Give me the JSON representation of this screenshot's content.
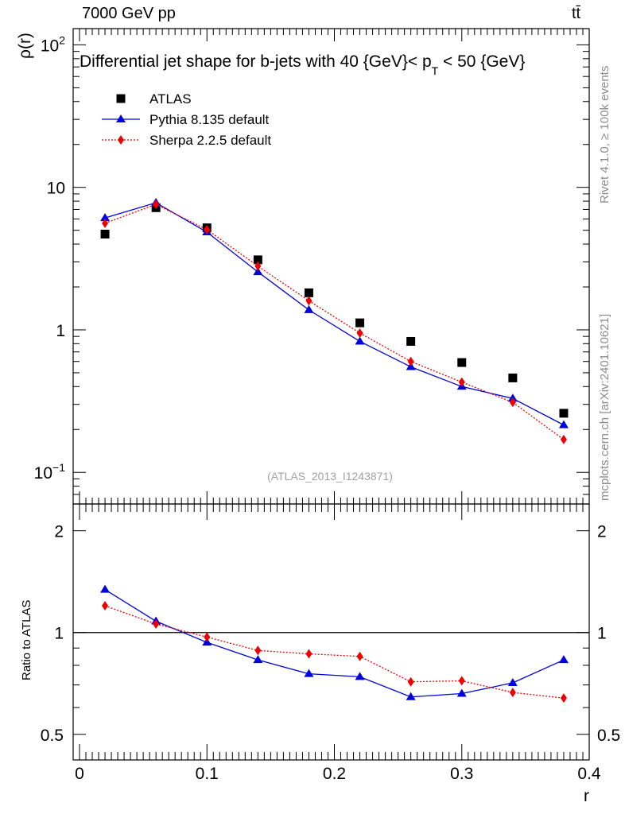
{
  "header": {
    "energy_label": "7000 GeV pp",
    "process_label": "tt̄",
    "rivet_label": "Rivet 4.1.0, ≥ 100k events",
    "mcplots_label": "mcplots.cern.ch [arXiv:2401.10621]"
  },
  "chart_data": [
    {
      "type": "scatter",
      "panel": "main",
      "title": "Differential jet shape for b-jets with 40 {GeV}< p_T < 50 {GeV}",
      "title_parts": {
        "before": "Differential jet shape for b-jets with 40 {GeV}< p",
        "sub": "T",
        "after": " < 50 {GeV}"
      },
      "watermark": "(ATLAS_2013_I1243871)",
      "ylabel": "ρ(r)",
      "xlabel": "",
      "xlim": [
        -0.005,
        0.4
      ],
      "ylim": [
        0.06,
        130
      ],
      "yscale": "log",
      "yticks": [
        {
          "value": 0.1,
          "label": "10",
          "exp": "−1"
        },
        {
          "value": 1,
          "label": "1",
          "exp": ""
        },
        {
          "value": 10,
          "label": "10",
          "exp": ""
        },
        {
          "value": 100,
          "label": "10",
          "exp": "2"
        }
      ],
      "x": [
        0.02,
        0.06,
        0.1,
        0.14,
        0.18,
        0.22,
        0.26,
        0.3,
        0.34,
        0.38
      ],
      "legend_position": "top-left",
      "series": [
        {
          "name": "ATLAS",
          "color": "#000000",
          "marker": "square",
          "line": "none",
          "values": [
            4.7,
            7.2,
            5.2,
            3.1,
            1.82,
            1.12,
            0.83,
            0.59,
            0.46,
            0.26
          ]
        },
        {
          "name": "Pythia 8.135 default",
          "color": "#0000dd",
          "marker": "triangle",
          "line": "solid",
          "values": [
            6.1,
            7.8,
            4.85,
            2.55,
            1.38,
            0.83,
            0.55,
            0.4,
            0.33,
            0.215
          ]
        },
        {
          "name": "Sherpa 2.2.5 default",
          "color": "#ee0000",
          "marker": "diamond",
          "line": "dotted",
          "values": [
            5.6,
            7.6,
            5.05,
            2.8,
            1.6,
            0.95,
            0.6,
            0.43,
            0.31,
            0.17
          ]
        }
      ]
    },
    {
      "type": "line",
      "panel": "ratio",
      "ylabel": "Ratio to ATLAS",
      "xlabel": "r",
      "xlim": [
        -0.005,
        0.4
      ],
      "ylim": [
        0.42,
        2.4
      ],
      "yscale": "log",
      "yticks": [
        {
          "value": 0.5,
          "label": "0.5"
        },
        {
          "value": 1,
          "label": "1"
        },
        {
          "value": 2,
          "label": "2"
        }
      ],
      "xticks": [
        {
          "value": 0,
          "label": "0"
        },
        {
          "value": 0.1,
          "label": "0.1"
        },
        {
          "value": 0.2,
          "label": "0.2"
        },
        {
          "value": 0.3,
          "label": "0.3"
        },
        {
          "value": 0.4,
          "label": "0.4"
        }
      ],
      "reference_line": 1,
      "x": [
        0.02,
        0.06,
        0.1,
        0.14,
        0.18,
        0.22,
        0.26,
        0.3,
        0.34,
        0.38
      ],
      "series": [
        {
          "name": "Pythia 8.135 default",
          "color": "#0000dd",
          "marker": "triangle",
          "line": "solid",
          "values": [
            1.34,
            1.08,
            0.935,
            0.83,
            0.755,
            0.74,
            0.645,
            0.66,
            0.71,
            0.83
          ]
        },
        {
          "name": "Sherpa 2.2.5 default",
          "color": "#ee0000",
          "marker": "diamond",
          "line": "dotted",
          "values": [
            1.2,
            1.06,
            0.97,
            0.885,
            0.865,
            0.85,
            0.715,
            0.72,
            0.665,
            0.64
          ]
        }
      ]
    }
  ]
}
